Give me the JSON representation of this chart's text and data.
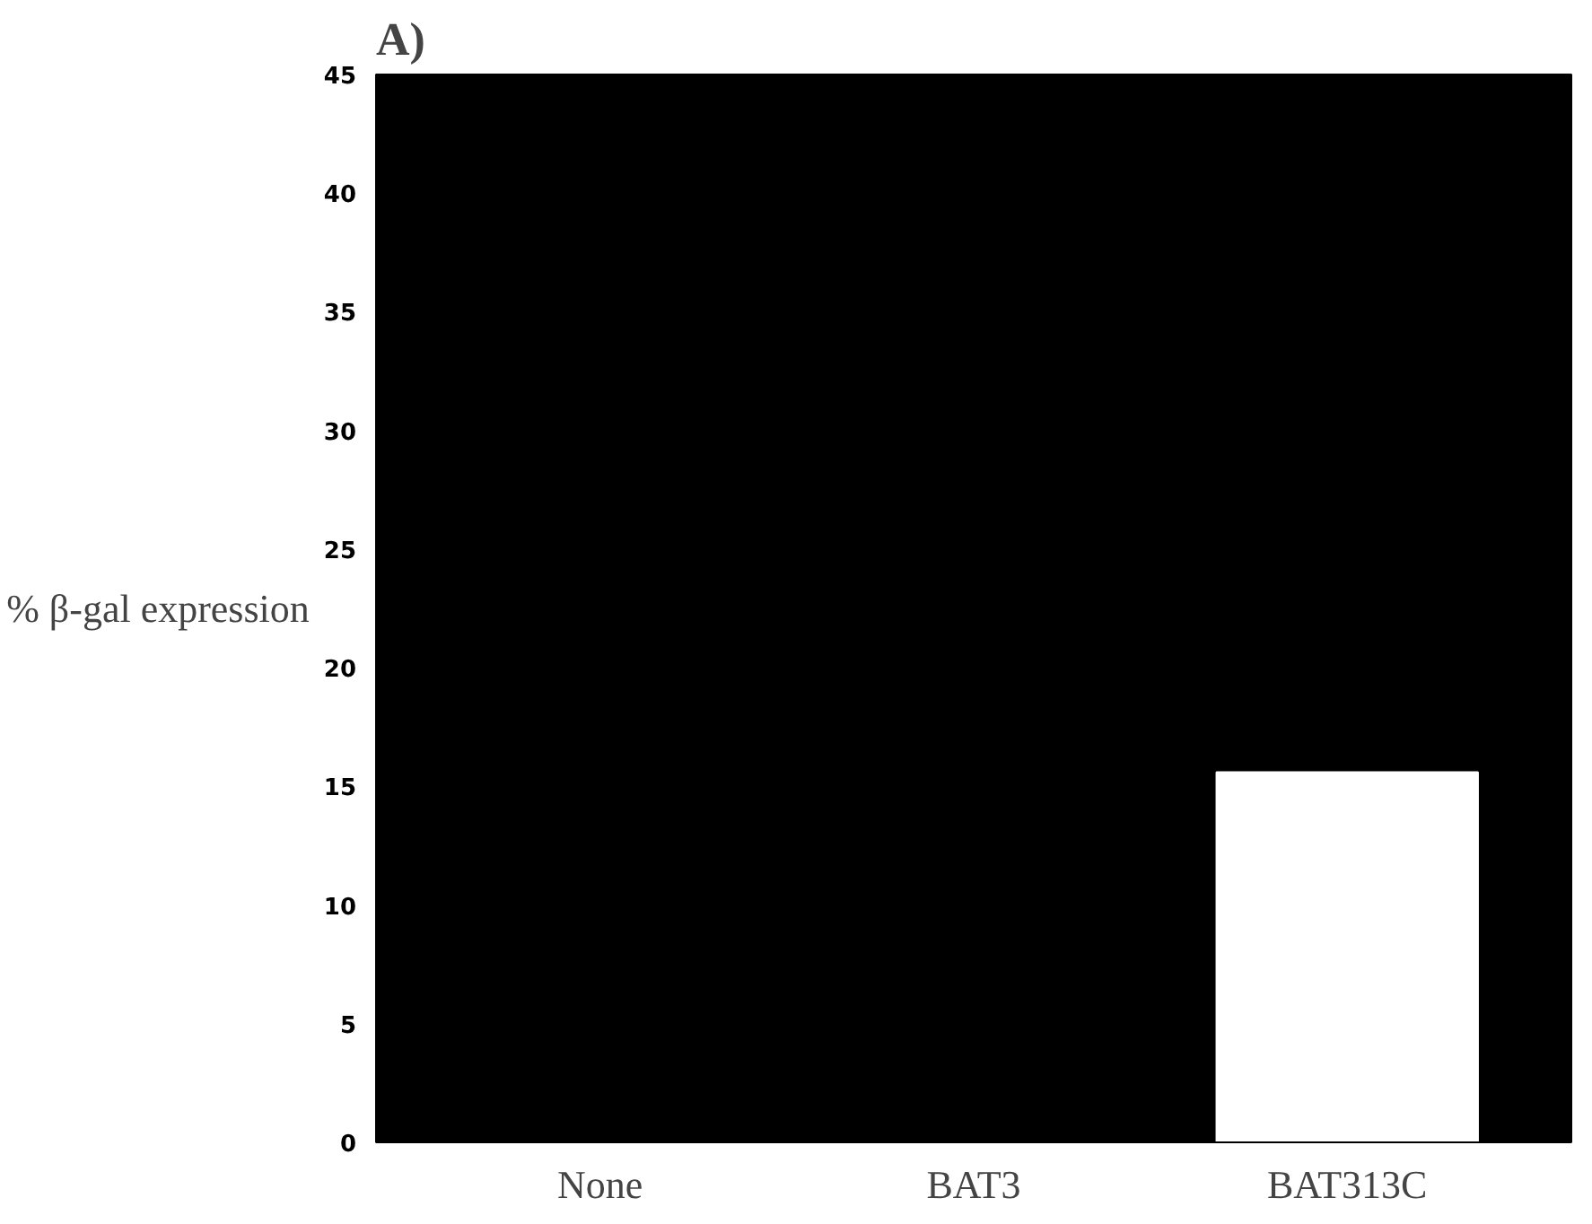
{
  "chart_data": {
    "type": "bar",
    "title": "A)",
    "ylabel": "% β-gal expression",
    "categories": [
      "None",
      "BAT3",
      "BAT313C"
    ],
    "values": [
      null,
      null,
      15.6
    ],
    "colors": [
      "#000000",
      "#000000",
      "#ffffff"
    ],
    "ylim": [
      0,
      45
    ],
    "yticks": [
      0,
      5,
      10,
      15,
      20,
      25,
      30,
      35,
      40,
      45
    ],
    "grid": false
  }
}
